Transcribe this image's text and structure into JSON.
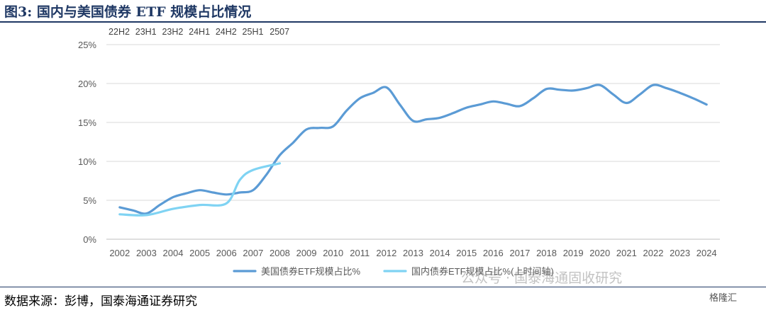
{
  "title": "图3:  国内与美国债券 ETF 规模占比情况",
  "source": "数据来源：彭博，国泰海通证券研究",
  "watermark": "公众号 · 国泰海通固收研究",
  "watermark_logo": "格隆汇",
  "colors": {
    "us_series": "#5b9bd5",
    "cn_series": "#7fd3f3",
    "axis_text": "#595959",
    "gridline": "#d9d9d9"
  },
  "chart_data": {
    "type": "line",
    "x": [
      2002,
      2003,
      2004,
      2005,
      2006,
      2007,
      2008,
      2009,
      2010,
      2011,
      2012,
      2013,
      2014,
      2015,
      2016,
      2017,
      2018,
      2019,
      2020,
      2021,
      2022,
      2023,
      2024
    ],
    "ylim": [
      0,
      25
    ],
    "yticks": [
      "0%",
      "5%",
      "10%",
      "15%",
      "20%",
      "25%"
    ],
    "ytick_values": [
      0,
      5,
      10,
      15,
      20,
      25
    ],
    "top_axis_labels": [
      "22H2",
      "23H1",
      "23H2",
      "24H1",
      "24H2",
      "25H1",
      "2507"
    ],
    "legend_position": "bottom",
    "series": [
      {
        "name": "美国债券ETF规模占比%",
        "points": [
          [
            2002.0,
            4.1
          ],
          [
            2002.5,
            3.7
          ],
          [
            2003.0,
            3.3
          ],
          [
            2003.5,
            4.4
          ],
          [
            2004.0,
            5.4
          ],
          [
            2004.5,
            5.9
          ],
          [
            2005.0,
            6.3
          ],
          [
            2005.5,
            6.0
          ],
          [
            2006.0,
            5.75
          ],
          [
            2006.5,
            6.0
          ],
          [
            2007.0,
            6.3
          ],
          [
            2007.5,
            8.3
          ],
          [
            2008.0,
            10.8
          ],
          [
            2008.5,
            12.4
          ],
          [
            2009.0,
            14.1
          ],
          [
            2009.5,
            14.3
          ],
          [
            2010.0,
            14.5
          ],
          [
            2010.5,
            16.5
          ],
          [
            2011.0,
            18.1
          ],
          [
            2011.5,
            18.8
          ],
          [
            2012.0,
            19.5
          ],
          [
            2012.5,
            17.3
          ],
          [
            2013.0,
            15.2
          ],
          [
            2013.5,
            15.4
          ],
          [
            2014.0,
            15.6
          ],
          [
            2014.5,
            16.2
          ],
          [
            2015.0,
            16.9
          ],
          [
            2015.5,
            17.3
          ],
          [
            2016.0,
            17.7
          ],
          [
            2016.5,
            17.4
          ],
          [
            2017.0,
            17.1
          ],
          [
            2017.5,
            18.1
          ],
          [
            2018.0,
            19.3
          ],
          [
            2018.5,
            19.2
          ],
          [
            2019.0,
            19.1
          ],
          [
            2019.5,
            19.4
          ],
          [
            2020.0,
            19.8
          ],
          [
            2020.5,
            18.6
          ],
          [
            2021.0,
            17.5
          ],
          [
            2021.5,
            18.6
          ],
          [
            2022.0,
            19.8
          ],
          [
            2022.5,
            19.4
          ],
          [
            2023.0,
            18.8
          ],
          [
            2023.5,
            18.1
          ],
          [
            2024.0,
            17.3
          ]
        ]
      },
      {
        "name": "国内债券ETF规模占比%(上时间轴)",
        "points": [
          [
            2002.0,
            3.2
          ],
          [
            2003.0,
            3.1
          ],
          [
            2004.0,
            3.9
          ],
          [
            2005.0,
            4.4
          ],
          [
            2006.0,
            4.6
          ],
          [
            2006.5,
            7.6
          ],
          [
            2007.0,
            8.9
          ],
          [
            2008.0,
            9.75
          ]
        ]
      }
    ]
  }
}
